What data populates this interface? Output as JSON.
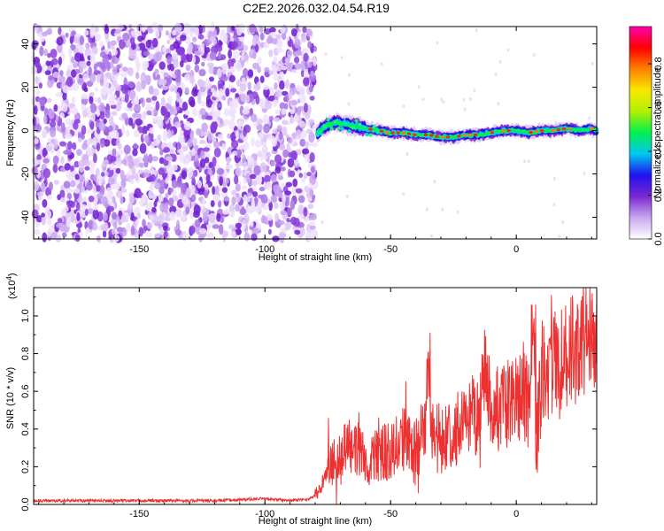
{
  "title": "C2E2.2026.032.04.54.R19",
  "chart_data": [
    {
      "type": "heatmap",
      "name": "spectrogram",
      "xlabel": "Height of straight line (km)",
      "ylabel": "Frequency (Hz)",
      "xlim": [
        -192,
        32
      ],
      "ylim": [
        -50,
        48
      ],
      "xticks": [
        -150,
        -100,
        -50,
        0
      ],
      "yticks": [
        -40,
        -20,
        0,
        20,
        40
      ],
      "noise_region_x": [
        -192,
        -80
      ],
      "signal_ridge": {
        "x": [
          -79,
          -76,
          -72,
          -68,
          -64,
          -60,
          -55,
          -50,
          -45,
          -40,
          -35,
          -30,
          -25,
          -20,
          -15,
          -10,
          -5,
          0,
          5,
          10,
          15,
          20,
          25,
          30,
          32
        ],
        "y": [
          -1,
          2,
          4,
          3,
          2,
          1,
          0,
          -1,
          -1,
          -2,
          -2,
          -3,
          -3,
          -2,
          -2,
          -1,
          0,
          0,
          -1,
          0,
          0,
          1,
          0,
          1,
          0
        ]
      },
      "colorbar": {
        "label": "Normalized spectral amplitude",
        "range": [
          0.0,
          0.97
        ],
        "ticks": [
          0.0,
          0.2,
          0.4,
          0.6,
          0.8
        ],
        "tick_labels": [
          "0.0",
          "0.2",
          "0.4",
          "0.6",
          "0.8"
        ],
        "colors": [
          "#ffffff",
          "#c8a8f0",
          "#7a28d0",
          "#2010f0",
          "#00c8f0",
          "#00f050",
          "#b0f000",
          "#f8e800",
          "#ff8000",
          "#ff0000",
          "#ff00b0"
        ]
      }
    },
    {
      "type": "line",
      "name": "snr",
      "xlabel": "Height of straight line (km)",
      "ylabel": "SNR (10 * v/v)",
      "scale_label": "(x10",
      "scale_exp": "4",
      "scale_close": ")",
      "xlim": [
        -192,
        32
      ],
      "ylim": [
        0,
        1.15
      ],
      "xticks": [
        -150,
        -100,
        -50,
        0
      ],
      "yticks": [
        0.0,
        0.2,
        0.4,
        0.6,
        0.8,
        1.0
      ],
      "ytick_labels": [
        "0.0",
        "0.2",
        "0.4",
        "0.6",
        "0.8",
        "1.0"
      ],
      "series": [
        {
          "name": "SNR",
          "color": "#ee3030",
          "x": [
            -192,
            -180,
            -160,
            -140,
            -120,
            -100,
            -90,
            -82,
            -80,
            -78,
            -76,
            -72,
            -70,
            -67,
            -65,
            -63,
            -60,
            -55,
            -50,
            -45,
            -40,
            -36,
            -35,
            -34,
            -33,
            -30,
            -25,
            -20,
            -15,
            -12,
            -10,
            -5,
            0,
            5,
            7,
            8,
            10,
            15,
            20,
            25,
            30,
            32
          ],
          "y": [
            0.02,
            0.02,
            0.02,
            0.02,
            0.02,
            0.03,
            0.02,
            0.03,
            0.05,
            0.08,
            0.15,
            0.25,
            0.2,
            0.38,
            0.25,
            0.3,
            0.22,
            0.25,
            0.3,
            0.35,
            0.28,
            0.4,
            0.9,
            0.3,
            0.35,
            0.35,
            0.4,
            0.45,
            0.48,
            0.75,
            0.5,
            0.52,
            0.58,
            0.55,
            1.05,
            0.3,
            0.7,
            0.75,
            0.8,
            0.85,
            0.9,
            0.92
          ]
        }
      ]
    }
  ]
}
